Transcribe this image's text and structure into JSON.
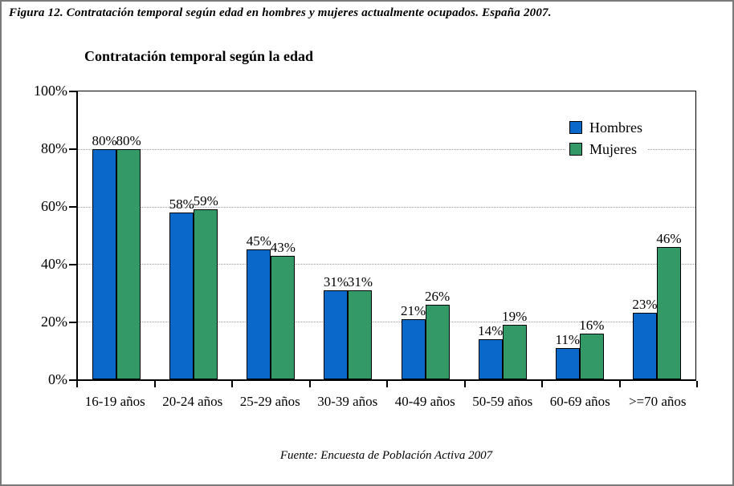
{
  "figure": {
    "caption": "Figura 12. Contratación temporal según edad en hombres y mujeres actualmente ocupados. España 2007.",
    "source": "Fuente: Encuesta de Población Activa 2007"
  },
  "chart_data": {
    "type": "bar",
    "title": "Contratación temporal según la edad",
    "categories": [
      "16-19 años",
      "20-24 años",
      "25-29 años",
      "30-39 años",
      "40-49 años",
      "50-59 años",
      "60-69 años",
      ">=70 años"
    ],
    "series": [
      {
        "name": "Hombres",
        "color": "#0a68ca",
        "values": [
          80,
          58,
          45,
          31,
          21,
          14,
          11,
          23
        ],
        "labels": [
          "80%",
          "58%",
          "45%",
          "31%",
          "21%",
          "14%",
          "11%",
          "23%"
        ]
      },
      {
        "name": "Mujeres",
        "color": "#339966",
        "values": [
          80,
          59,
          43,
          31,
          26,
          19,
          16,
          46
        ],
        "labels": [
          "80%",
          "59%",
          "43%",
          "31%",
          "26%",
          "19%",
          "16%",
          "46%"
        ]
      }
    ],
    "xlabel": "",
    "ylabel": "",
    "ylim": [
      0,
      100
    ],
    "yticks": [
      {
        "value": 0,
        "label": "0%"
      },
      {
        "value": 20,
        "label": "20%"
      },
      {
        "value": 40,
        "label": "40%"
      },
      {
        "value": 60,
        "label": "60%"
      },
      {
        "value": 80,
        "label": "80%"
      },
      {
        "value": 100,
        "label": "100%"
      }
    ],
    "gridlines": [
      20,
      40,
      60,
      80
    ],
    "grid": "horizontal dotted",
    "legend_position": "upper-right-inside",
    "bar_border_color": "#000000"
  }
}
